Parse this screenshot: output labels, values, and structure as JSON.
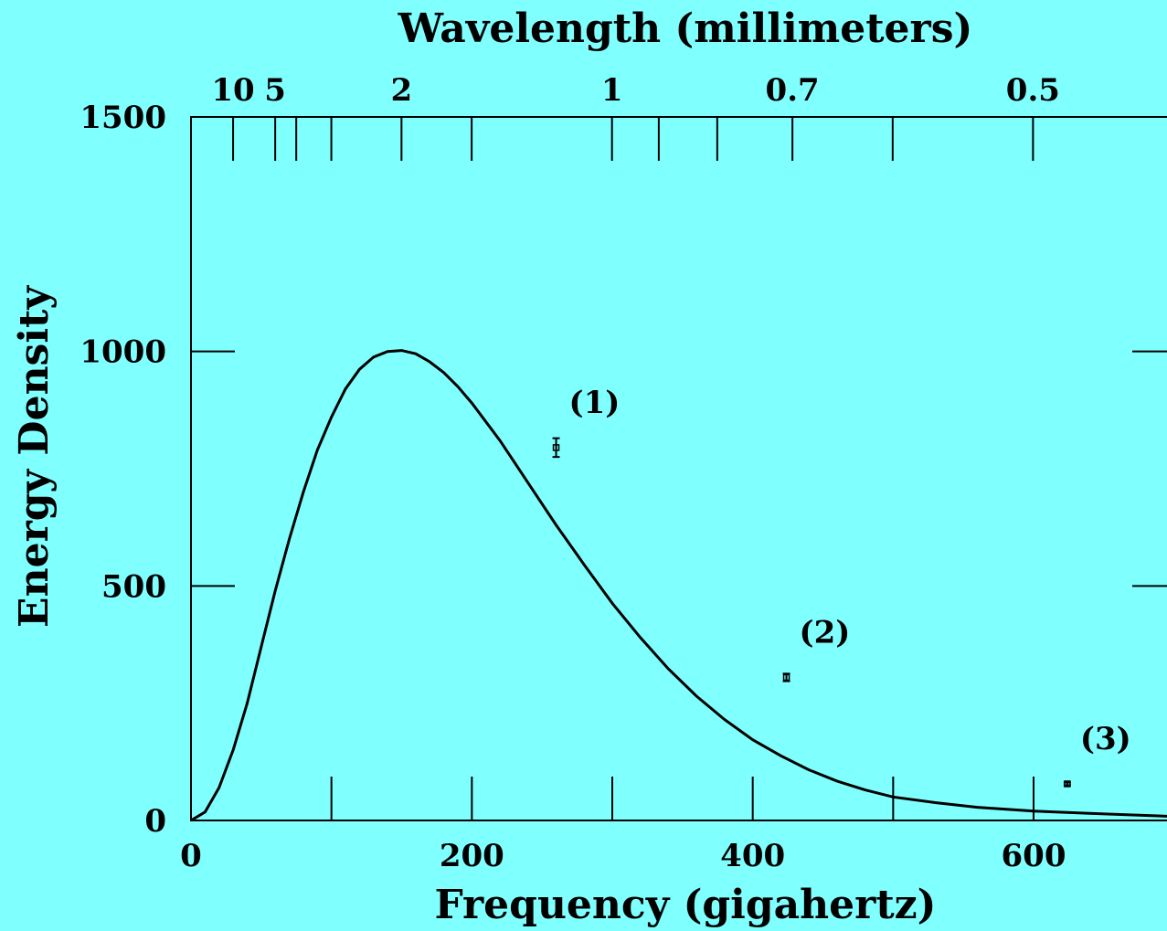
{
  "background_color": "#80ffff",
  "line_color": "#000000",
  "chart_data": {
    "type": "line",
    "top_title": "Wavelength (millimeters)",
    "xlabel": "Frequency (gigahertz)",
    "ylabel": "Energy Density",
    "xlim": [
      0,
      695
    ],
    "ylim": [
      0,
      1500
    ],
    "x_ticks": [
      0,
      200,
      400,
      600
    ],
    "x_tick_labels": [
      "0",
      "200",
      "400",
      "600"
    ],
    "x_minor_ticks": [
      100,
      300,
      500
    ],
    "y_ticks": [
      0,
      500,
      1000,
      1500
    ],
    "y_tick_labels": [
      "0",
      "500",
      "1000",
      "1500"
    ],
    "top_ticks_wavelength_mm": [
      10,
      5,
      4,
      3,
      2,
      1.5,
      1,
      0.9,
      0.8,
      0.7,
      0.6,
      0.5
    ],
    "top_tick_labels": [
      {
        "wavelength_mm": 10,
        "label": "10"
      },
      {
        "wavelength_mm": 5,
        "label": "5"
      },
      {
        "wavelength_mm": 2,
        "label": "2"
      },
      {
        "wavelength_mm": 1,
        "label": "1"
      },
      {
        "wavelength_mm": 0.7,
        "label": "0.7"
      },
      {
        "wavelength_mm": 0.5,
        "label": "0.5"
      }
    ],
    "curve": {
      "description": "Blackbody spectrum",
      "x": [
        0,
        10,
        20,
        30,
        40,
        50,
        60,
        70,
        80,
        90,
        100,
        110,
        120,
        130,
        140,
        150,
        160,
        170,
        180,
        190,
        200,
        220,
        240,
        260,
        280,
        300,
        320,
        340,
        360,
        380,
        400,
        420,
        440,
        460,
        480,
        500,
        530,
        560,
        600,
        640,
        695
      ],
      "y": [
        0,
        18,
        70,
        150,
        250,
        370,
        490,
        600,
        700,
        790,
        860,
        920,
        962,
        988,
        1000,
        1002,
        995,
        978,
        955,
        925,
        890,
        810,
        720,
        630,
        545,
        463,
        390,
        323,
        265,
        215,
        172,
        138,
        108,
        84,
        65,
        50,
        38,
        28,
        20,
        15,
        9
      ]
    },
    "points": [
      {
        "label": "(1)",
        "x": 260,
        "y": 795,
        "yerr": 20
      },
      {
        "label": "(2)",
        "x": 424,
        "y": 305,
        "yerr": 8
      },
      {
        "label": "(3)",
        "x": 624,
        "y": 78,
        "yerr": 3
      }
    ]
  }
}
